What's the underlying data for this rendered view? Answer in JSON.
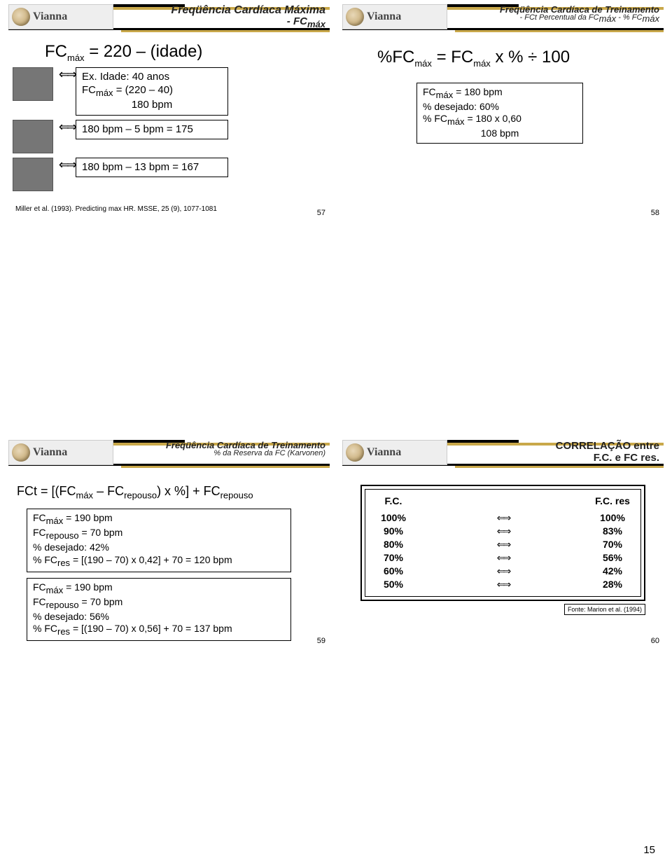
{
  "logo_text": "Vianna",
  "page_number": "15",
  "slide57": {
    "title_l1": "Freqüência Cardíaca Máxima",
    "title_l2": "- FC",
    "title_l2_sub": "máx",
    "main_eq_pre": "FC",
    "main_eq_sub": "máx",
    "main_eq_post": " = 220 – (idade)",
    "box1_l1": "Ex. Idade: 40 anos",
    "box1_l2_pre": "FC",
    "box1_l2_sub": "máx",
    "box1_l2_post": " = (220 – 40)",
    "box1_l3": "180 bpm",
    "box2": "180 bpm – 5 bpm = 175",
    "box3": "180 bpm – 13 bpm = 167",
    "cite": "Miller et al. (1993). Predicting max HR. MSSE, 25 (9), 1077-1081",
    "num": "57"
  },
  "slide58": {
    "title_l1": "Freqüência Cardíaca de Treinamento",
    "sub_pre": "- FCt Percentual da FC",
    "sub_sub": "máx",
    "sub_mid": " - % FC",
    "sub_sub2": "máx",
    "eq_1": "%FC",
    "eq_1s": "máx",
    "eq_2": " = FC",
    "eq_2s": "máx",
    "eq_3": " x % ÷ 100",
    "bx_l1_pre": "FC",
    "bx_l1_sub": "máx",
    "bx_l1_post": " = 180 bpm",
    "bx_l2": "% desejado: 60%",
    "bx_l3_pre": "% FC",
    "bx_l3_sub": "máx",
    "bx_l3_post": " = 180 x 0,60",
    "bx_l4": "108 bpm",
    "num": "58"
  },
  "slide59": {
    "title_l1": "Freqüência Cardíaca de Treinamento",
    "sub": "% da Reserva da FC (Karvonen)",
    "eq_a": "FCt = [(FC",
    "eq_as": "máx",
    "eq_b": " – FC",
    "eq_bs": "repouso",
    "eq_c": ") x %] + FC",
    "eq_cs": "repouso",
    "bx1_l1_pre": "FC",
    "bx1_l1_sub": "máx",
    "bx1_l1_post": " = 190 bpm",
    "bx1_l2_pre": "FC",
    "bx1_l2_sub": "repouso",
    "bx1_l2_post": " = 70 bpm",
    "bx1_l3": "% desejado: 42%",
    "bx1_l4_pre": "% FC",
    "bx1_l4_sub": "res",
    "bx1_l4_post": " = [(190 – 70)  x 0,42] + 70 = 120 bpm",
    "bx2_l1_pre": "FC",
    "bx2_l1_sub": "máx",
    "bx2_l1_post": " = 190 bpm",
    "bx2_l2_pre": "FC",
    "bx2_l2_sub": "repouso",
    "bx2_l2_post": " = 70 bpm",
    "bx2_l3": "% desejado: 56%",
    "bx2_l4_pre": "% FC",
    "bx2_l4_sub": "res",
    "bx2_l4_post": " = [(190 – 70)  x 0,56] + 70 = 137 bpm",
    "num": "59"
  },
  "slide60": {
    "title_l1": "CORRELAÇÃO entre",
    "title_l2": "F.C.  e  FC res.",
    "col1": "F.C.",
    "col2": "F.C. res",
    "rows": [
      {
        "a": "100%",
        "b": "100%"
      },
      {
        "a": "90%",
        "b": "83%"
      },
      {
        "a": "80%",
        "b": "70%"
      },
      {
        "a": "70%",
        "b": "56%"
      },
      {
        "a": "60%",
        "b": "42%"
      },
      {
        "a": "50%",
        "b": "28%"
      }
    ],
    "src": "Fonte: Marion et al. (1994)",
    "num": "60"
  },
  "arrow_glyph": "⇐⇒"
}
